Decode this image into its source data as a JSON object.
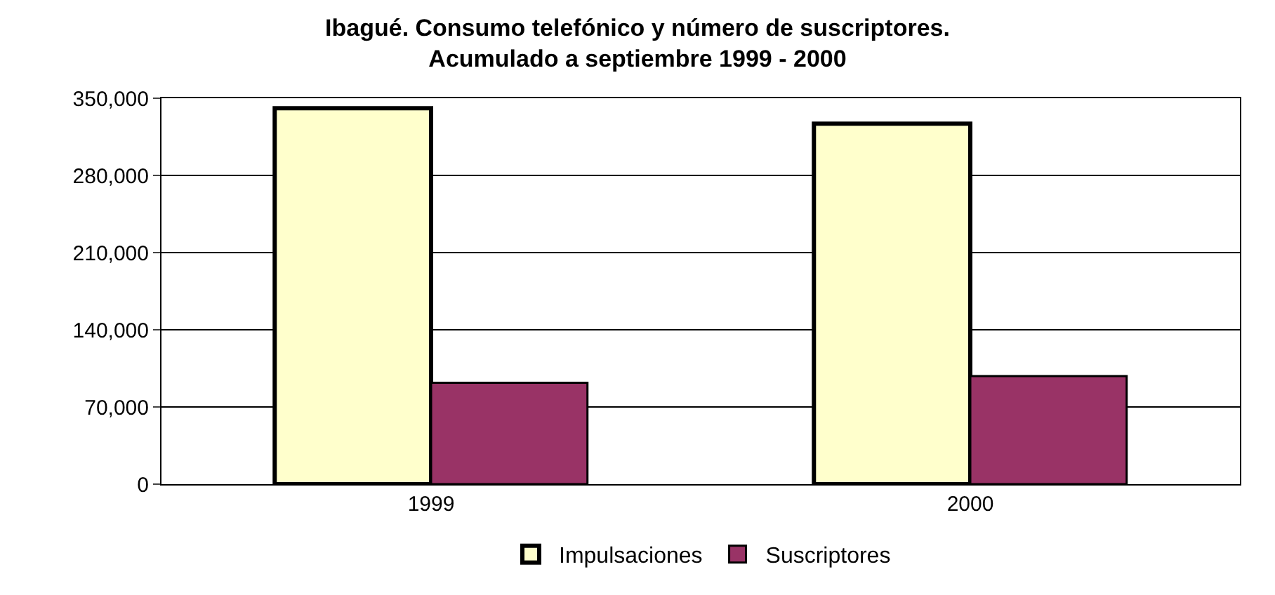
{
  "chart_data": {
    "type": "bar",
    "title": "Ibagué. Consumo telefónico y número de suscriptores.\nAcumulado a septiembre 1999 - 2000",
    "categories": [
      "1999",
      "2000"
    ],
    "series": [
      {
        "name": "Impulsaciones",
        "color": "#ffffcc",
        "values": [
          341000,
          327000
        ]
      },
      {
        "name": "Suscriptores",
        "color": "#993366",
        "values": [
          92000,
          98000
        ]
      }
    ],
    "ylim": [
      0,
      350000
    ],
    "yticks": [
      {
        "value": 0,
        "label": "0"
      },
      {
        "value": 70000,
        "label": "70,000"
      },
      {
        "value": 140000,
        "label": "140,000"
      },
      {
        "value": 210000,
        "label": "210,000"
      },
      {
        "value": 280000,
        "label": "280,000"
      },
      {
        "value": 350000,
        "label": "350,000"
      }
    ],
    "grid": "y",
    "legend": "bottom"
  }
}
